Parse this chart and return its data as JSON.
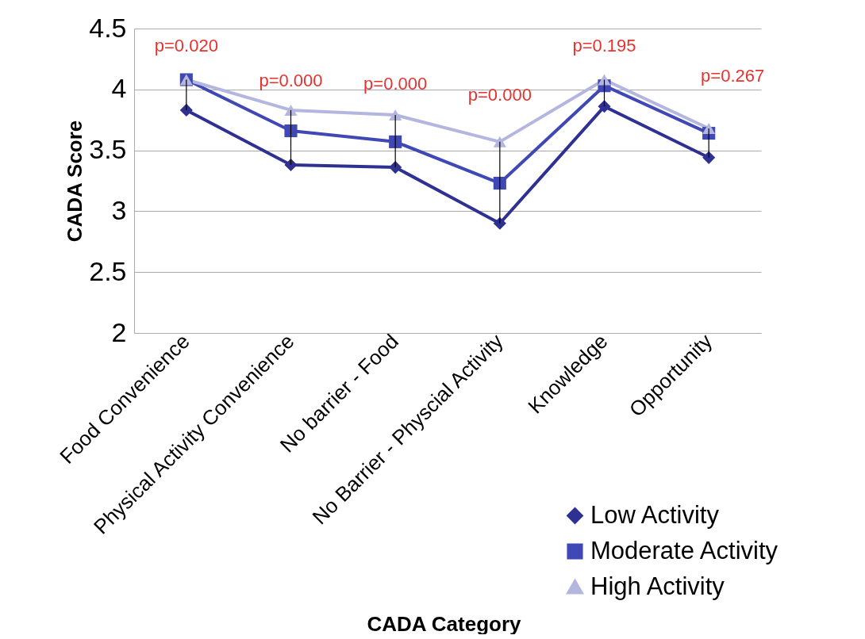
{
  "chart_data": {
    "type": "line",
    "xlabel": "CADA Category",
    "ylabel": "CADA  Score",
    "categories": [
      "Food Convenience",
      "Physical Activity Convenience",
      "No barrier - Food",
      "No Barrier - Physcial Activity",
      "Knowledge",
      "Opportunity"
    ],
    "series": [
      {
        "name": "Low Activity",
        "color": "#2e3192",
        "marker": "diamond",
        "values": [
          3.83,
          3.38,
          3.36,
          2.9,
          3.86,
          3.44
        ],
        "errors": [
          [
            3.83,
            4.08
          ],
          [
            3.38,
            3.83
          ],
          [
            3.36,
            3.79
          ],
          [
            2.9,
            3.57
          ],
          [
            3.86,
            4.08
          ],
          [
            3.44,
            3.68
          ]
        ]
      },
      {
        "name": "Moderate Activity",
        "color": "#3f48b4",
        "marker": "square",
        "values": [
          4.08,
          3.66,
          3.57,
          3.23,
          4.03,
          3.64
        ]
      },
      {
        "name": "High Activity",
        "color": "#b3b6df",
        "marker": "triangle",
        "values": [
          4.08,
          3.83,
          3.79,
          3.57,
          4.08,
          3.68
        ]
      }
    ],
    "ylim": [
      2,
      4.5
    ],
    "yticks": [
      2,
      2.5,
      3,
      3.5,
      4,
      4.5
    ],
    "grid": "y",
    "legend": "bottom right",
    "annotations": [
      "p=0.020",
      "p=0.000",
      "p=0.000",
      "p=0.000",
      "p=0.195",
      "p=0.267"
    ]
  }
}
